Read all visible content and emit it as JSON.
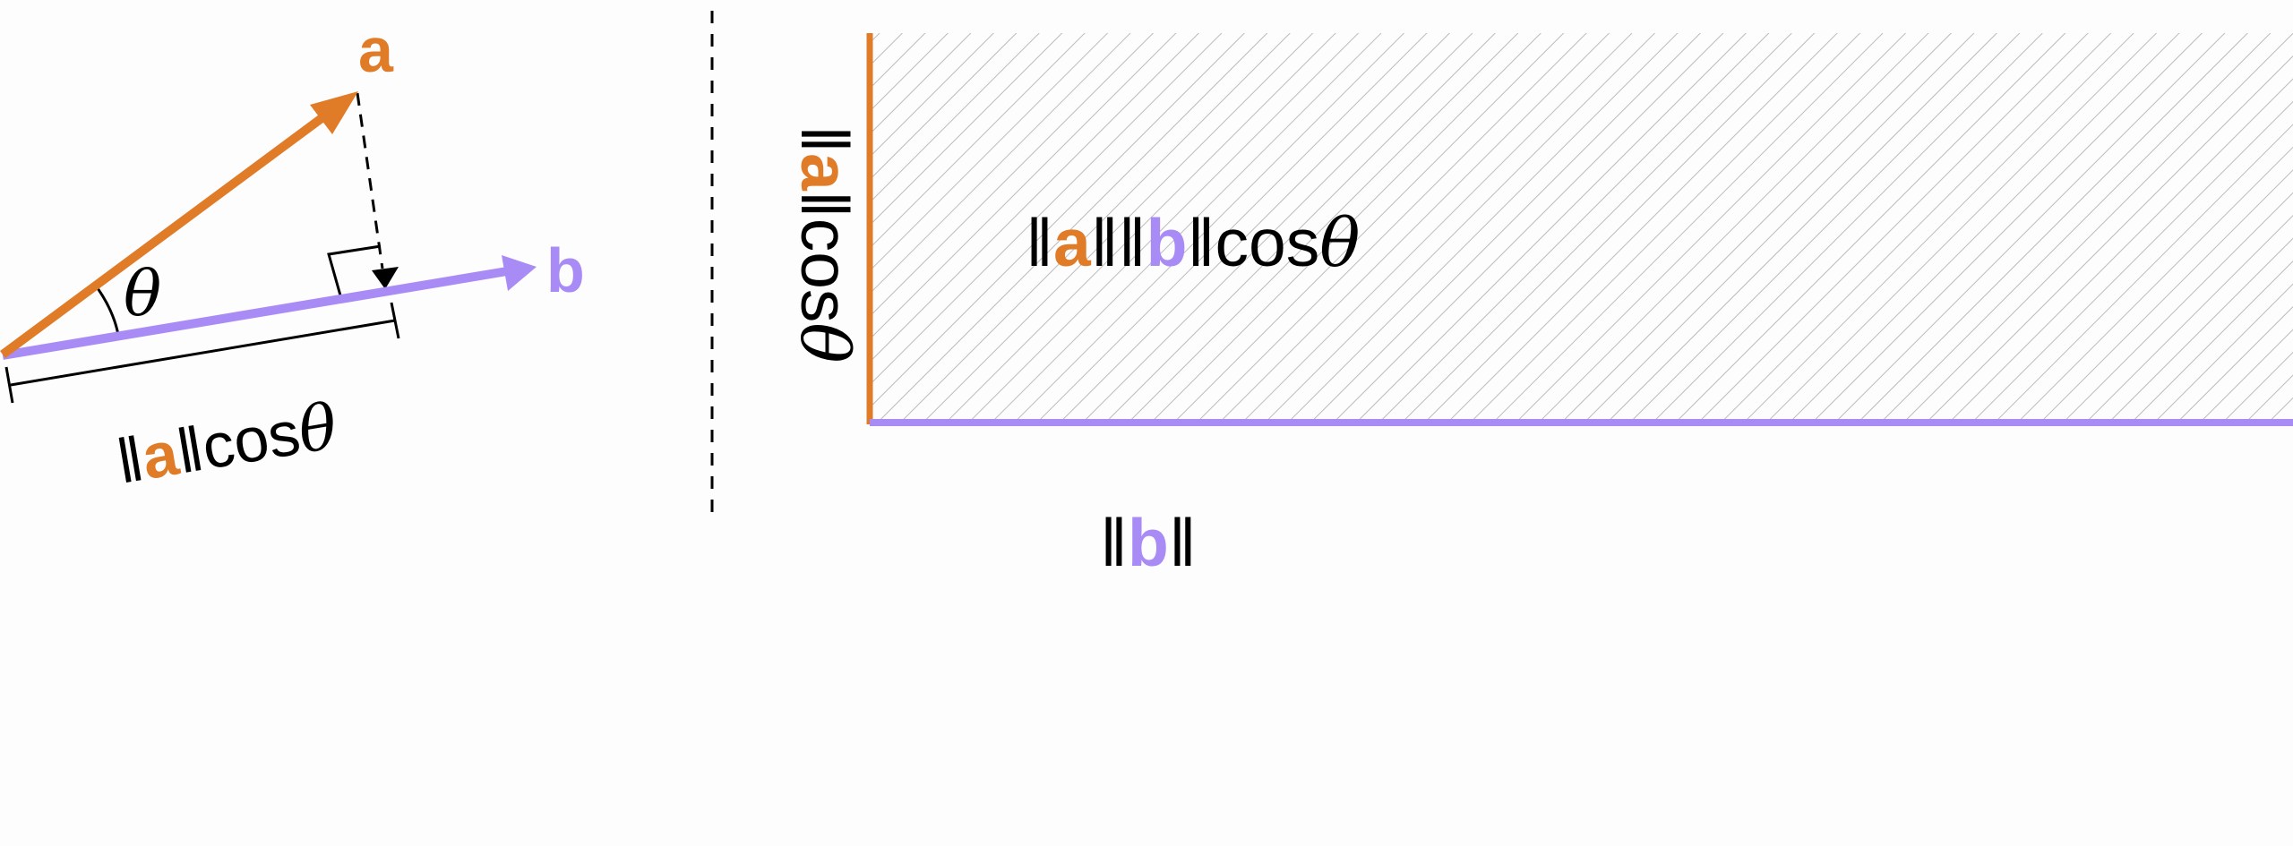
{
  "colors": {
    "a": "#E07B28",
    "b": "#A98BF6",
    "hatch": "#BBBBBB",
    "ink": "#000000"
  },
  "left": {
    "label_a": "a",
    "label_b": "b",
    "angle_label": "θ",
    "projection_label": {
      "norm_open": "‖",
      "vec": "a",
      "norm_close": "‖",
      "cos": "cos",
      "theta": "θ"
    }
  },
  "right": {
    "area_label": {
      "n1": "‖",
      "a": "a",
      "n2": "‖‖",
      "b": "b",
      "n3": "‖",
      "cos": "cos",
      "theta": "θ"
    },
    "height_label": {
      "n1": "‖",
      "a": "a",
      "n2": "‖",
      "cos": "cos",
      "theta": "θ"
    },
    "width_label": {
      "n1": "‖",
      "b": "b",
      "n2": "‖"
    }
  }
}
